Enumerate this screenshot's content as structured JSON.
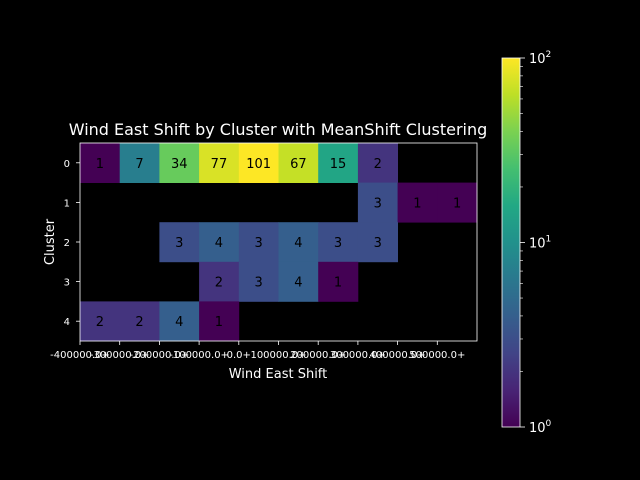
{
  "chart_data": {
    "type": "heatmap",
    "title": "Wind East Shift by Cluster with MeanShift Clustering",
    "xlabel": "Wind East Shift",
    "ylabel": "Cluster",
    "x_categories": [
      "-400000.0+",
      "-300000.0+",
      "-200000.0+",
      "-100000.0+",
      "0.0+",
      "100000.0+",
      "200000.0+",
      "300000.0+",
      "400000.0+",
      "500000.0+"
    ],
    "y_categories": [
      "0",
      "1",
      "2",
      "3",
      "4"
    ],
    "values": [
      [
        1,
        7,
        34,
        77,
        101,
        67,
        15,
        2,
        null,
        null
      ],
      [
        null,
        null,
        null,
        null,
        null,
        null,
        null,
        3,
        1,
        1
      ],
      [
        null,
        null,
        3,
        4,
        3,
        4,
        3,
        3,
        null,
        null
      ],
      [
        null,
        null,
        null,
        2,
        3,
        4,
        1,
        null,
        null,
        null
      ],
      [
        2,
        2,
        4,
        1,
        null,
        null,
        null,
        null,
        null,
        null
      ]
    ],
    "colorbar": {
      "scale": "log",
      "range": [
        1,
        100
      ],
      "colormap": "viridis",
      "tick_base": "10",
      "tick_exponents": [
        "0",
        "1",
        "2"
      ]
    },
    "background": "#000000"
  }
}
